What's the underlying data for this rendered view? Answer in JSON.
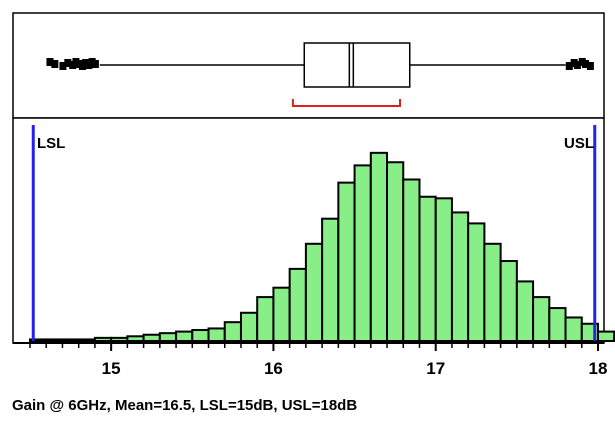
{
  "caption": "Gain @ 6GHz, Mean=16.5, LSL=15dB, USL=18dB",
  "chart_data": {
    "type": "histogram",
    "x_ticks": [
      15,
      16,
      17,
      18
    ],
    "xlim": [
      14.5,
      18.0
    ],
    "bin_start": 14.5,
    "bin_width": 0.1,
    "counts": [
      1,
      1,
      1,
      1,
      2,
      2,
      3,
      4,
      5,
      6,
      7,
      8,
      12,
      18,
      28,
      34,
      46,
      62,
      78,
      101,
      112,
      120,
      114,
      103,
      92,
      91,
      82,
      75,
      62,
      51,
      38,
      28,
      21,
      15,
      11,
      6,
      2
    ],
    "ylim": [
      0,
      125
    ],
    "limits": {
      "lsl_label": "LSL",
      "lsl": 14.52,
      "usl_label": "USL",
      "usl": 17.98
    },
    "boxplot": {
      "whisker_low": 14.93,
      "q1": 16.19,
      "median": 16.48,
      "q3": 16.84,
      "whisker_high": 17.8
    },
    "bracket": {
      "from": 16.12,
      "to": 16.78
    },
    "outliers_low": [
      14.62,
      14.65,
      14.7,
      14.73,
      14.76,
      14.78,
      14.8,
      14.82,
      14.84,
      14.86,
      14.88,
      14.9
    ],
    "outliers_high": [
      17.82,
      17.85,
      17.87,
      17.9,
      17.92,
      17.95
    ],
    "colors": {
      "bar_fill": "#88ee88",
      "bar_stroke": "#000000",
      "limit_line": "#2222ee",
      "bracket": "#e02020"
    }
  }
}
